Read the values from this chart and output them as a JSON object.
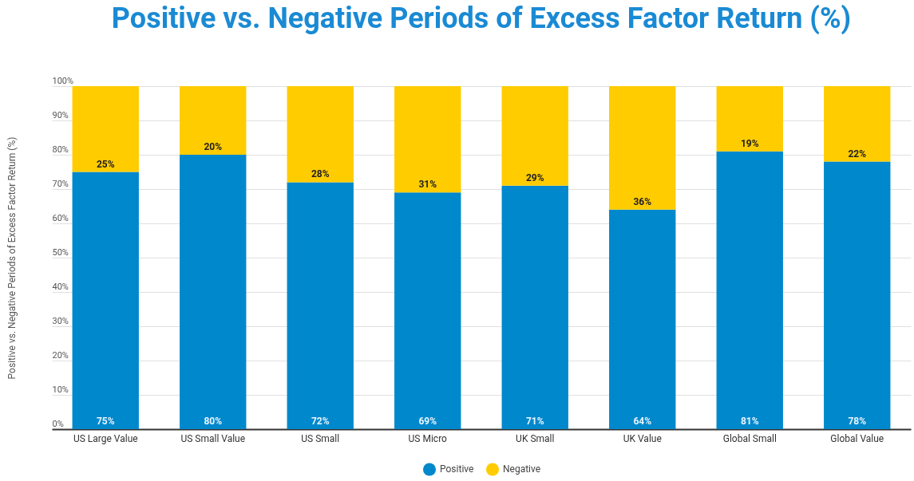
{
  "chart_data": {
    "type": "bar",
    "title": "Positive vs. Negative Periods of Excess Factor Return (%)",
    "ylabel": "Positive vs. Negative Periods of Excess Factor Return (%)",
    "categories": [
      "US Large Value",
      "US Small Value",
      "US Small",
      "US Micro",
      "UK Small",
      "UK Value",
      "Global Small",
      "Global Value"
    ],
    "stacked": true,
    "series": [
      {
        "name": "Positive",
        "color": "#0088cc",
        "values": [
          75,
          80,
          72,
          69,
          71,
          64,
          81,
          78
        ],
        "value_labels": [
          "75%",
          "80%",
          "72%",
          "69%",
          "71%",
          "64%",
          "81%",
          "78%"
        ]
      },
      {
        "name": "Negative",
        "color": "#ffcc00",
        "values": [
          25,
          20,
          28,
          31,
          29,
          36,
          19,
          22
        ],
        "value_labels": [
          "25%",
          "20%",
          "28%",
          "31%",
          "29%",
          "36%",
          "19%",
          "22%"
        ]
      }
    ],
    "ylim": [
      0,
      100
    ],
    "yticks": [
      {
        "value": 0,
        "label": "0%"
      },
      {
        "value": 10,
        "label": "10%"
      },
      {
        "value": 20,
        "label": "20%"
      },
      {
        "value": 30,
        "label": "30%"
      },
      {
        "value": 40,
        "label": "40%"
      },
      {
        "value": 50,
        "label": "50%"
      },
      {
        "value": 60,
        "label": "60%"
      },
      {
        "value": 70,
        "label": "70%"
      },
      {
        "value": 80,
        "label": "80%"
      },
      {
        "value": 90,
        "label": "90%"
      },
      {
        "value": 100,
        "label": "100%"
      }
    ],
    "grid": "y",
    "legend": "bottom"
  }
}
